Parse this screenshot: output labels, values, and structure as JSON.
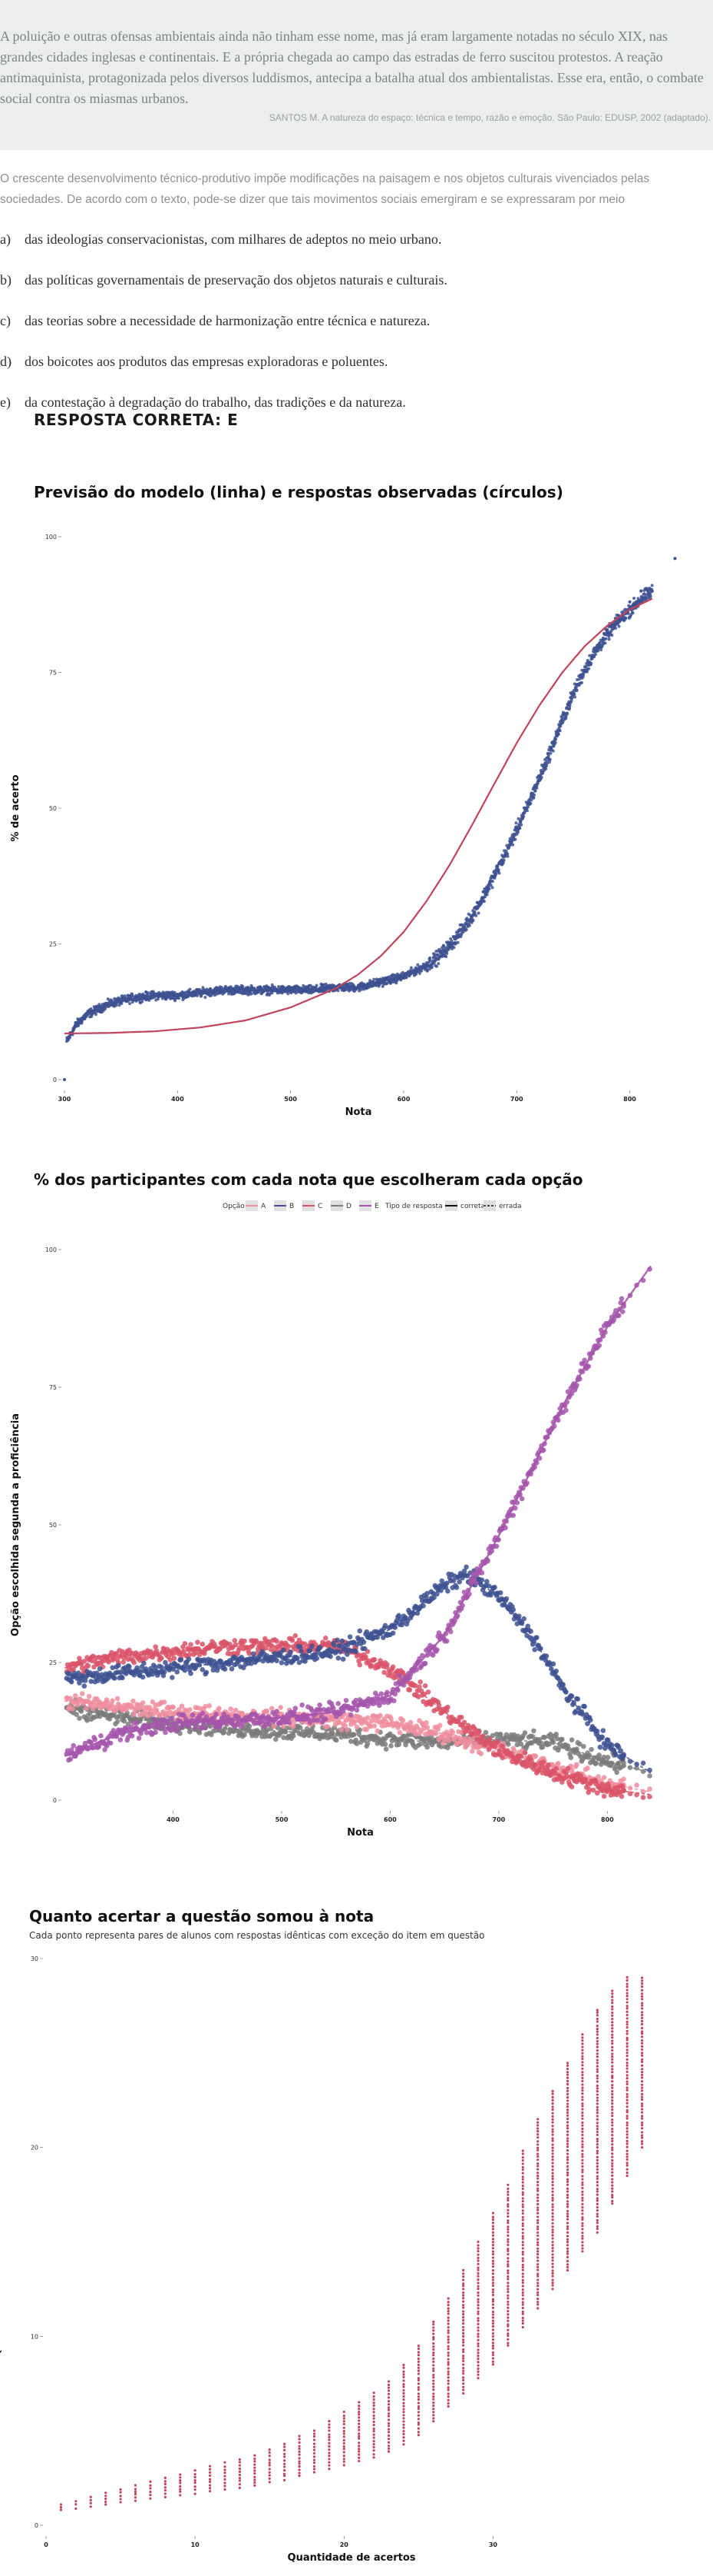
{
  "question": {
    "passage": "A poluição e outras ofensas ambientais ainda não tinham esse nome, mas já eram largamente notadas no século XIX, nas grandes cidades inglesas e continentais. E a própria chegada ao campo das estradas de ferro suscitou protestos. A reação antimaquinista, protagonizada pelos diversos luddismos, antecipa a batalha atual dos ambientalistas. Esse era, então, o combate social contra os miasmas urbanos.",
    "source": "SANTOS M. A natureza do espaço: técnica e tempo, razão e emoção. São Paulo: EDUSP, 2002 (adaptado).",
    "stem": "O crescente desenvolvimento técnico-produtivo impõe modificações na paisagem e nos objetos culturais vivenciados pelas sociedades. De acordo com o texto, pode-se dizer que tais movimentos sociais emergiram e se expressaram por meio",
    "options": [
      {
        "letter": "a)",
        "text": "das ideologias conservacionistas, com milhares de adeptos no meio urbano."
      },
      {
        "letter": "b)",
        "text": "das políticas governamentais de preservação dos objetos naturais e culturais."
      },
      {
        "letter": "c)",
        "text": "das teorias sobre a necessidade de harmonização entre técnica e natureza."
      },
      {
        "letter": "d)",
        "text": "dos boicotes aos produtos das empresas exploradoras e poluentes."
      },
      {
        "letter": "e)",
        "text": "da contestação à degradação do trabalho, das tradições e da natureza."
      }
    ],
    "answer": "RESPOSTA CORRETA: E"
  },
  "chart_data": [
    {
      "type": "scatter",
      "title": "Previsão do modelo (linha) e respostas observadas (círculos)",
      "xlabel": "Nota",
      "ylabel": "% de acerto",
      "xticks": [
        300,
        400,
        500,
        600,
        700,
        800
      ],
      "yticks": [
        0,
        25,
        50,
        75,
        100
      ],
      "xlim": [
        300,
        820
      ],
      "ylim": [
        0,
        100
      ],
      "grid": false,
      "series": [
        {
          "role": "model-line",
          "color": "#c0445a",
          "x": [
            300,
            340,
            380,
            420,
            460,
            500,
            540,
            560,
            580,
            600,
            620,
            640,
            660,
            680,
            700,
            720,
            740,
            760,
            780,
            800,
            820,
            840
          ],
          "y": [
            8.5,
            8.6,
            8.9,
            9.6,
            10.9,
            13.3,
            16.8,
            19.4,
            22.8,
            27.2,
            32.8,
            39.3,
            46.7,
            54.4,
            62.0,
            68.9,
            74.9,
            79.8,
            83.6,
            86.6,
            88.6,
            90.0
          ]
        },
        {
          "role": "observed-points",
          "color": "#3e5191",
          "x": [
            300,
            302,
            310,
            320,
            330,
            340,
            350,
            360,
            380,
            400,
            420,
            440,
            460,
            480,
            500,
            520,
            540,
            560,
            580,
            600,
            610,
            620,
            630,
            640,
            650,
            660,
            670,
            680,
            690,
            700,
            710,
            720,
            730,
            740,
            750,
            760,
            770,
            780,
            790,
            800,
            810,
            820,
            840
          ],
          "y": [
            0,
            7,
            10,
            12,
            13,
            14,
            14.5,
            15,
            15.5,
            15.5,
            16,
            16.5,
            16.5,
            16.5,
            16.5,
            16.5,
            17,
            17,
            18,
            19,
            20,
            21,
            22.5,
            24.5,
            27,
            30,
            33.5,
            37.5,
            41.5,
            46,
            50.5,
            55.5,
            60.5,
            66,
            71,
            75.5,
            79,
            82,
            84.5,
            86.5,
            88.5,
            90,
            96
          ]
        }
      ]
    },
    {
      "type": "scatter",
      "title": "% dos participantes com cada nota que escolheram cada opção",
      "xlabel": "Nota",
      "ylabel": "Opção escolhida segunda a proficiência",
      "xticks": [
        400,
        500,
        600,
        700,
        800
      ],
      "yticks": [
        0,
        25,
        50,
        75,
        100
      ],
      "xlim": [
        300,
        845
      ],
      "ylim": [
        0,
        100
      ],
      "legend": {
        "position": "top",
        "option_title": "Opção",
        "options": [
          "A",
          "B",
          "C",
          "D",
          "E"
        ],
        "type_title": "Tipo de resposta",
        "types": [
          "correta",
          "errada"
        ]
      },
      "series": [
        {
          "name": "A",
          "color": "#ef8e9e",
          "x": [
            300,
            350,
            400,
            450,
            500,
            550,
            600,
            650,
            700,
            750,
            800,
            840
          ],
          "y": [
            18,
            17,
            16,
            15.5,
            15,
            14.5,
            14,
            12,
            9,
            6,
            3,
            1.5
          ]
        },
        {
          "name": "B",
          "color": "#3e5191",
          "x": [
            300,
            350,
            400,
            450,
            500,
            550,
            600,
            650,
            670,
            700,
            730,
            760,
            800,
            840
          ],
          "y": [
            22,
            23,
            24,
            25,
            26,
            27,
            31,
            39,
            41,
            37,
            30,
            20,
            10,
            5
          ]
        },
        {
          "name": "C",
          "color": "#d95468",
          "x": [
            300,
            350,
            400,
            450,
            500,
            550,
            600,
            650,
            700,
            750,
            800,
            840
          ],
          "y": [
            24,
            26,
            27,
            28,
            28,
            28,
            24,
            16,
            9,
            5,
            2,
            1
          ]
        },
        {
          "name": "D",
          "color": "#7b7b7b",
          "x": [
            300,
            350,
            400,
            450,
            500,
            550,
            600,
            650,
            700,
            750,
            800,
            840
          ],
          "y": [
            17,
            15,
            14,
            13,
            12.5,
            12,
            11,
            10.5,
            11,
            10.5,
            7,
            5
          ]
        },
        {
          "name": "E",
          "color": "#a556ab",
          "x": [
            300,
            350,
            400,
            450,
            500,
            550,
            600,
            650,
            700,
            730,
            760,
            800,
            840
          ],
          "y": [
            8,
            12,
            14,
            14.5,
            15,
            16,
            19,
            30,
            48,
            60,
            72,
            86,
            97
          ]
        }
      ]
    },
    {
      "type": "scatter",
      "title": "Quanto acertar a questão somou à nota",
      "subtitle": "Cada ponto representa pares de alunos com respostas idênticas com exceção do item em questão",
      "xlabel": "Quantidade de acertos",
      "ylabel": "Quanto acertar o item aumentou a anota",
      "xticks": [
        0,
        10,
        20,
        30
      ],
      "yticks": [
        0,
        10,
        20,
        30
      ],
      "xlim": [
        0,
        41
      ],
      "ylim": [
        0,
        30
      ],
      "color": "#c0445a",
      "columns": [
        {
          "x": 1,
          "ymin": 0.8,
          "ymax": 1.1
        },
        {
          "x": 2,
          "ymin": 0.9,
          "ymax": 1.3
        },
        {
          "x": 3,
          "ymin": 1.0,
          "ymax": 1.5
        },
        {
          "x": 4,
          "ymin": 1.1,
          "ymax": 1.7
        },
        {
          "x": 5,
          "ymin": 1.2,
          "ymax": 1.9
        },
        {
          "x": 6,
          "ymin": 1.3,
          "ymax": 2.1
        },
        {
          "x": 7,
          "ymin": 1.4,
          "ymax": 2.3
        },
        {
          "x": 8,
          "ymin": 1.5,
          "ymax": 2.5
        },
        {
          "x": 9,
          "ymin": 1.6,
          "ymax": 2.7
        },
        {
          "x": 10,
          "ymin": 1.7,
          "ymax": 2.9
        },
        {
          "x": 11,
          "ymin": 1.8,
          "ymax": 3.1
        },
        {
          "x": 12,
          "ymin": 1.9,
          "ymax": 3.3
        },
        {
          "x": 13,
          "ymin": 2.0,
          "ymax": 3.5
        },
        {
          "x": 14,
          "ymin": 2.1,
          "ymax": 3.7
        },
        {
          "x": 15,
          "ymin": 2.3,
          "ymax": 4.0
        },
        {
          "x": 16,
          "ymin": 2.4,
          "ymax": 4.3
        },
        {
          "x": 17,
          "ymin": 2.6,
          "ymax": 4.7
        },
        {
          "x": 18,
          "ymin": 2.8,
          "ymax": 5.0
        },
        {
          "x": 19,
          "ymin": 3.0,
          "ymax": 5.5
        },
        {
          "x": 20,
          "ymin": 3.2,
          "ymax": 6.0
        },
        {
          "x": 21,
          "ymin": 3.4,
          "ymax": 6.5
        },
        {
          "x": 22,
          "ymin": 3.6,
          "ymax": 7.0
        },
        {
          "x": 23,
          "ymin": 3.9,
          "ymax": 7.6
        },
        {
          "x": 24,
          "ymin": 4.3,
          "ymax": 8.5
        },
        {
          "x": 25,
          "ymin": 4.8,
          "ymax": 9.5
        },
        {
          "x": 26,
          "ymin": 5.5,
          "ymax": 10.8
        },
        {
          "x": 27,
          "ymin": 6.3,
          "ymax": 12.0
        },
        {
          "x": 28,
          "ymin": 7.0,
          "ymax": 13.5
        },
        {
          "x": 29,
          "ymin": 7.8,
          "ymax": 15.0
        },
        {
          "x": 30,
          "ymin": 8.5,
          "ymax": 16.5
        },
        {
          "x": 31,
          "ymin": 9.5,
          "ymax": 18.0
        },
        {
          "x": 32,
          "ymin": 10.5,
          "ymax": 19.8
        },
        {
          "x": 33,
          "ymin": 11.5,
          "ymax": 21.5
        },
        {
          "x": 34,
          "ymin": 12.5,
          "ymax": 23.0
        },
        {
          "x": 35,
          "ymin": 13.5,
          "ymax": 24.5
        },
        {
          "x": 36,
          "ymin": 14.5,
          "ymax": 26.0
        },
        {
          "x": 37,
          "ymin": 15.5,
          "ymax": 27.3
        },
        {
          "x": 38,
          "ymin": 17.0,
          "ymax": 28.3
        },
        {
          "x": 39,
          "ymin": 18.5,
          "ymax": 29.0
        },
        {
          "x": 40,
          "ymin": 20.0,
          "ymax": 29.0
        }
      ]
    }
  ]
}
